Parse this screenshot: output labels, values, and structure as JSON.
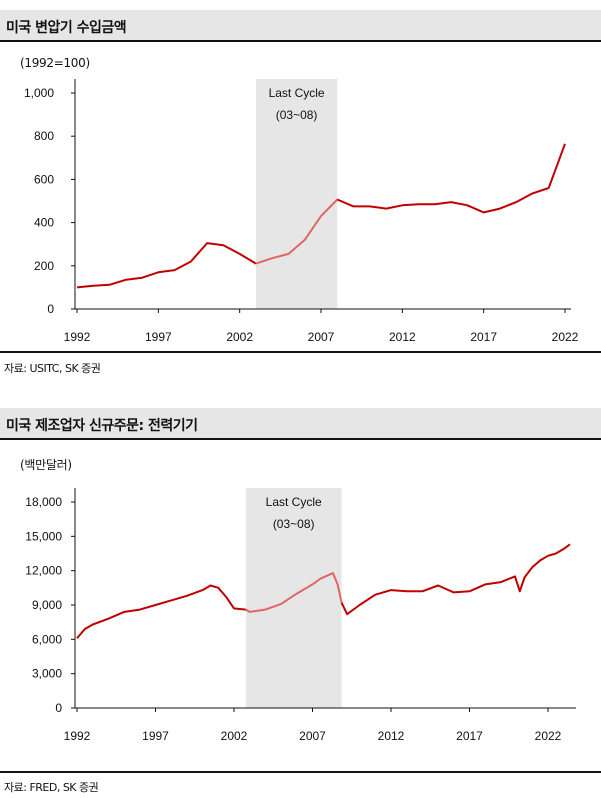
{
  "chart_data": [
    {
      "type": "line",
      "title": "미국 변압기 수입금액",
      "unit_label": "(1992=100)",
      "source": "자료: USITC, SK 증권",
      "x_tick_labels": [
        "1992",
        "1997",
        "2002",
        "2007",
        "2012",
        "2017",
        "2022"
      ],
      "y_tick_labels": [
        "0",
        "200",
        "400",
        "600",
        "800",
        "1,000"
      ],
      "ylim": [
        0,
        1000
      ],
      "xlim": [
        1992,
        2022
      ],
      "grid": false,
      "highlight": {
        "label": "Last Cycle",
        "sublabel": "(03~08)",
        "from": 2003,
        "to": 2008
      },
      "colors": {
        "line": "#c00000",
        "cycle_line": "#e06666",
        "band": "#e6e6e6"
      },
      "x": [
        1992,
        1993,
        1994,
        1995,
        1996,
        1997,
        1998,
        1999,
        2000,
        2001,
        2002,
        2003,
        2004,
        2005,
        2006,
        2007,
        2008,
        2009,
        2010,
        2011,
        2012,
        2013,
        2014,
        2015,
        2016,
        2017,
        2018,
        2019,
        2020,
        2021,
        2022
      ],
      "values": [
        100,
        108,
        112,
        135,
        145,
        170,
        180,
        220,
        305,
        295,
        255,
        210,
        235,
        255,
        320,
        430,
        507,
        475,
        475,
        465,
        480,
        485,
        485,
        495,
        480,
        447,
        465,
        495,
        535,
        560,
        765
      ]
    },
    {
      "type": "line",
      "title": "미국 제조업자 신규주문: 전력기기",
      "unit_label": "(백만달러)",
      "source": "자료: FRED, SK 증권",
      "x_tick_labels": [
        "1992",
        "1997",
        "2002",
        "2007",
        "2012",
        "2017",
        "2022"
      ],
      "y_tick_labels": [
        "0",
        "3,000",
        "6,000",
        "9,000",
        "12,000",
        "15,000",
        "18,000"
      ],
      "ylim": [
        0,
        18000
      ],
      "xlim": [
        1992,
        2023.4
      ],
      "grid": false,
      "highlight": {
        "label": "Last Cycle",
        "sublabel": "(03~08)",
        "from": 2002.75,
        "to": 2008.85
      },
      "colors": {
        "line": "#c00000",
        "cycle_line": "#e06666",
        "band": "#e6e6e6"
      },
      "x": [
        1992,
        1992.5,
        1993,
        1994,
        1995,
        1996,
        1997,
        1998,
        1999,
        2000,
        2000.5,
        2001,
        2001.5,
        2002,
        2002.75,
        2003,
        2004,
        2005,
        2006,
        2007,
        2007.5,
        2008,
        2008.3,
        2008.6,
        2008.85,
        2009.2,
        2010,
        2011,
        2012,
        2013,
        2014,
        2015,
        2016,
        2017,
        2018,
        2019,
        2019.9,
        2020.2,
        2020.5,
        2021,
        2021.5,
        2022,
        2022.5,
        2023,
        2023.4
      ],
      "values": [
        6100,
        6900,
        7300,
        7800,
        8400,
        8600,
        9000,
        9400,
        9800,
        10300,
        10700,
        10500,
        9700,
        8700,
        8600,
        8400,
        8600,
        9100,
        10000,
        10800,
        11300,
        11600,
        11800,
        10800,
        9200,
        8200,
        9000,
        9900,
        10300,
        10200,
        10200,
        10700,
        10100,
        10200,
        10800,
        11000,
        11500,
        10200,
        11400,
        12300,
        12900,
        13300,
        13500,
        13900,
        14300
      ]
    }
  ]
}
